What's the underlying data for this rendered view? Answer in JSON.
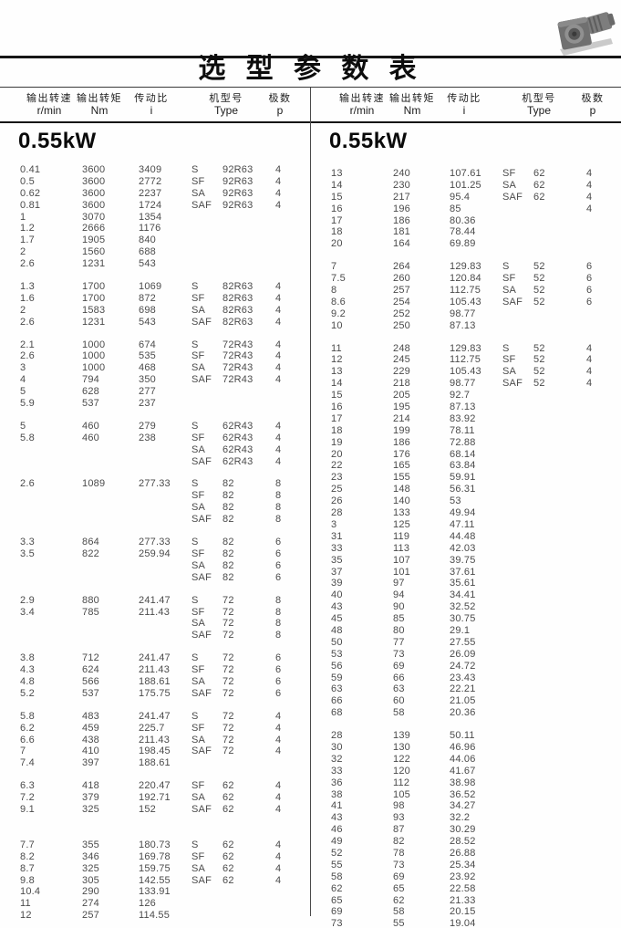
{
  "title": "选 型 参 数 表",
  "header_image": "worm-gearmotor-photo",
  "palette": {
    "ink": "#0d0d0d",
    "data_text": "#4b4b4b",
    "rule": "#161616"
  },
  "columns": [
    {
      "label": "输出转速",
      "unit": "r/min"
    },
    {
      "label": "输出转矩",
      "unit": "Nm"
    },
    {
      "label": "传动比",
      "unit": "i"
    },
    {
      "label": "机型号",
      "unit": "Type"
    },
    {
      "label": "极数",
      "unit": "p"
    }
  ],
  "left": {
    "section": "0.55kW",
    "groups": [
      {
        "rows": [
          [
            "0.41",
            "3600",
            "3409",
            "S",
            "92R63",
            "4"
          ],
          [
            "0.5",
            "3600",
            "2772",
            "SF",
            "92R63",
            "4"
          ],
          [
            "0.62",
            "3600",
            "2237",
            "SA",
            "92R63",
            "4"
          ],
          [
            "0.81",
            "3600",
            "1724",
            "SAF",
            "92R63",
            "4"
          ],
          [
            "1",
            "3070",
            "1354",
            "",
            "",
            ""
          ],
          [
            "1.2",
            "2666",
            "1176",
            "",
            "",
            ""
          ],
          [
            "1.7",
            "1905",
            "840",
            "",
            "",
            ""
          ],
          [
            "2",
            "1560",
            "688",
            "",
            "",
            ""
          ],
          [
            "2.6",
            "1231",
            "543",
            "",
            "",
            ""
          ]
        ]
      },
      {
        "rows": [
          [
            "1.3",
            "1700",
            "1069",
            "S",
            "82R63",
            "4"
          ],
          [
            "1.6",
            "1700",
            "872",
            "SF",
            "82R63",
            "4"
          ],
          [
            "2",
            "1583",
            "698",
            "SA",
            "82R63",
            "4"
          ],
          [
            "2.6",
            "1231",
            "543",
            "SAF",
            "82R63",
            "4"
          ]
        ]
      },
      {
        "rows": [
          [
            "2.1",
            "1000",
            "674",
            "S",
            "72R43",
            "4"
          ],
          [
            "2.6",
            "1000",
            "535",
            "SF",
            "72R43",
            "4"
          ],
          [
            "3",
            "1000",
            "468",
            "SA",
            "72R43",
            "4"
          ],
          [
            "4",
            "794",
            "350",
            "SAF",
            "72R43",
            "4"
          ],
          [
            "5",
            "628",
            "277",
            "",
            "",
            ""
          ],
          [
            "5.9",
            "537",
            "237",
            "",
            "",
            ""
          ]
        ]
      },
      {
        "rows": [
          [
            "5",
            "460",
            "279",
            "S",
            "62R43",
            "4"
          ],
          [
            "5.8",
            "460",
            "238",
            "SF",
            "62R43",
            "4"
          ],
          [
            "",
            "",
            "",
            "SA",
            "62R43",
            "4"
          ],
          [
            "",
            "",
            "",
            "SAF",
            "62R43",
            "4"
          ]
        ]
      },
      {
        "rows": [
          [
            "2.6",
            "1089",
            "277.33",
            "S",
            "82",
            "8"
          ],
          [
            "",
            "",
            "",
            "SF",
            "82",
            "8"
          ],
          [
            "",
            "",
            "",
            "SA",
            "82",
            "8"
          ],
          [
            "",
            "",
            "",
            "SAF",
            "82",
            "8"
          ]
        ]
      },
      {
        "rows": [
          [
            "3.3",
            "864",
            "277.33",
            "S",
            "82",
            "6"
          ],
          [
            "3.5",
            "822",
            "259.94",
            "SF",
            "82",
            "6"
          ],
          [
            "",
            "",
            "",
            "SA",
            "82",
            "6"
          ],
          [
            "",
            "",
            "",
            "SAF",
            "82",
            "6"
          ]
        ]
      },
      {
        "rows": [
          [
            "2.9",
            "880",
            "241.47",
            "S",
            "72",
            "8"
          ],
          [
            "3.4",
            "785",
            "211.43",
            "SF",
            "72",
            "8"
          ],
          [
            "",
            "",
            "",
            "SA",
            "72",
            "8"
          ],
          [
            "",
            "",
            "",
            "SAF",
            "72",
            "8"
          ]
        ]
      },
      {
        "rows": [
          [
            "3.8",
            "712",
            "241.47",
            "S",
            "72",
            "6"
          ],
          [
            "4.3",
            "624",
            "211.43",
            "SF",
            "72",
            "6"
          ],
          [
            "4.8",
            "566",
            "188.61",
            "SA",
            "72",
            "6"
          ],
          [
            "5.2",
            "537",
            "175.75",
            "SAF",
            "72",
            "6"
          ]
        ]
      },
      {
        "rows": [
          [
            "5.8",
            "483",
            "241.47",
            "S",
            "72",
            "4"
          ],
          [
            "6.2",
            "459",
            "225.7",
            "SF",
            "72",
            "4"
          ],
          [
            "6.6",
            "438",
            "211.43",
            "SA",
            "72",
            "4"
          ],
          [
            "7",
            "410",
            "198.45",
            "SAF",
            "72",
            "4"
          ],
          [
            "7.4",
            "397",
            "188.61",
            "",
            "",
            ""
          ]
        ]
      },
      {
        "rows": [
          [
            "6.3",
            "418",
            "220.47",
            "SF",
            "62",
            "4"
          ],
          [
            "7.2",
            "379",
            "192.71",
            "SA",
            "62",
            "4"
          ],
          [
            "9.1",
            "325",
            "152",
            "SAF",
            "62",
            "4"
          ]
        ]
      },
      {
        "rows": [
          [
            "7.7",
            "355",
            "180.73",
            "S",
            "62",
            "4"
          ],
          [
            "8.2",
            "346",
            "169.78",
            "SF",
            "62",
            "4"
          ],
          [
            "8.7",
            "325",
            "159.75",
            "SA",
            "62",
            "4"
          ],
          [
            "9.8",
            "305",
            "142.55",
            "SAF",
            "62",
            "4"
          ],
          [
            "10.4",
            "290",
            "133.91",
            "",
            "",
            ""
          ],
          [
            "11",
            "274",
            "126",
            "",
            "",
            ""
          ],
          [
            "12",
            "257",
            "114.55",
            "",
            "",
            ""
          ]
        ]
      }
    ]
  },
  "right": {
    "section": "0.55kW",
    "groups": [
      {
        "rows": [
          [
            "13",
            "240",
            "107.61",
            "SF",
            "62",
            "4"
          ],
          [
            "14",
            "230",
            "101.25",
            "SA",
            "62",
            "4"
          ],
          [
            "15",
            "217",
            "95.4",
            "SAF",
            "62",
            "4"
          ],
          [
            "16",
            "196",
            "85",
            "",
            "",
            "4"
          ],
          [
            "17",
            "186",
            "80.36",
            "",
            "",
            ""
          ],
          [
            "18",
            "181",
            "78.44",
            "",
            "",
            ""
          ],
          [
            "20",
            "164",
            "69.89",
            "",
            "",
            ""
          ]
        ]
      },
      {
        "rows": [
          [
            "7",
            "264",
            "129.83",
            "S",
            "52",
            "6"
          ],
          [
            "7.5",
            "260",
            "120.84",
            "SF",
            "52",
            "6"
          ],
          [
            "8",
            "257",
            "112.75",
            "SA",
            "52",
            "6"
          ],
          [
            "8.6",
            "254",
            "105.43",
            "SAF",
            "52",
            "6"
          ],
          [
            "9.2",
            "252",
            "98.77",
            "",
            "",
            ""
          ],
          [
            "10",
            "250",
            "87.13",
            "",
            "",
            ""
          ]
        ]
      },
      {
        "rows": [
          [
            "11",
            "248",
            "129.83",
            "S",
            "52",
            "4"
          ],
          [
            "12",
            "245",
            "112.75",
            "SF",
            "52",
            "4"
          ],
          [
            "13",
            "229",
            "105.43",
            "SA",
            "52",
            "4"
          ],
          [
            "14",
            "218",
            "98.77",
            "SAF",
            "52",
            "4"
          ],
          [
            "15",
            "205",
            "92.7",
            "",
            "",
            ""
          ],
          [
            "16",
            "195",
            "87.13",
            "",
            "",
            ""
          ],
          [
            "17",
            "214",
            "83.92",
            "",
            "",
            ""
          ],
          [
            "18",
            "199",
            "78.11",
            "",
            "",
            ""
          ],
          [
            "19",
            "186",
            "72.88",
            "",
            "",
            ""
          ],
          [
            "20",
            "176",
            "68.14",
            "",
            "",
            ""
          ],
          [
            "22",
            "165",
            "63.84",
            "",
            "",
            ""
          ],
          [
            "23",
            "155",
            "59.91",
            "",
            "",
            ""
          ],
          [
            "25",
            "148",
            "56.31",
            "",
            "",
            ""
          ],
          [
            "26",
            "140",
            "53",
            "",
            "",
            ""
          ],
          [
            "28",
            "133",
            "49.94",
            "",
            "",
            ""
          ],
          [
            "3",
            "125",
            "47.11",
            "",
            "",
            ""
          ],
          [
            "31",
            "119",
            "44.48",
            "",
            "",
            ""
          ],
          [
            "33",
            "113",
            "42.03",
            "",
            "",
            ""
          ],
          [
            "35",
            "107",
            "39.75",
            "",
            "",
            ""
          ],
          [
            "37",
            "101",
            "37.61",
            "",
            "",
            ""
          ],
          [
            "39",
            "97",
            "35.61",
            "",
            "",
            ""
          ],
          [
            "40",
            "94",
            "34.41",
            "",
            "",
            ""
          ],
          [
            "43",
            "90",
            "32.52",
            "",
            "",
            ""
          ],
          [
            "45",
            "85",
            "30.75",
            "",
            "",
            ""
          ],
          [
            "48",
            "80",
            "29.1",
            "",
            "",
            ""
          ],
          [
            "50",
            "77",
            "27.55",
            "",
            "",
            ""
          ],
          [
            "53",
            "73",
            "26.09",
            "",
            "",
            ""
          ],
          [
            "56",
            "69",
            "24.72",
            "",
            "",
            ""
          ],
          [
            "59",
            "66",
            "23.43",
            "",
            "",
            ""
          ],
          [
            "63",
            "63",
            "22.21",
            "",
            "",
            ""
          ],
          [
            "66",
            "60",
            "21.05",
            "",
            "",
            ""
          ],
          [
            "68",
            "58",
            "20.36",
            "",
            "",
            ""
          ]
        ]
      },
      {
        "rows": [
          [
            "28",
            "139",
            "50.11",
            "",
            "",
            ""
          ],
          [
            "30",
            "130",
            "46.96",
            "",
            "",
            ""
          ],
          [
            "32",
            "122",
            "44.06",
            "",
            "",
            ""
          ],
          [
            "33",
            "120",
            "41.67",
            "",
            "",
            ""
          ],
          [
            "36",
            "112",
            "38.98",
            "",
            "",
            ""
          ],
          [
            "38",
            "105",
            "36.52",
            "",
            "",
            ""
          ],
          [
            "41",
            "98",
            "34.27",
            "",
            "",
            ""
          ],
          [
            "43",
            "93",
            "32.2",
            "",
            "",
            ""
          ],
          [
            "46",
            "87",
            "30.29",
            "",
            "",
            ""
          ],
          [
            "49",
            "82",
            "28.52",
            "",
            "",
            ""
          ],
          [
            "52",
            "78",
            "26.88",
            "",
            "",
            ""
          ],
          [
            "55",
            "73",
            "25.34",
            "",
            "",
            ""
          ],
          [
            "58",
            "69",
            "23.92",
            "",
            "",
            ""
          ],
          [
            "62",
            "65",
            "22.58",
            "",
            "",
            ""
          ],
          [
            "65",
            "62",
            "21.33",
            "",
            "",
            ""
          ],
          [
            "69",
            "58",
            "20.15",
            "",
            "",
            ""
          ],
          [
            "73",
            "55",
            "19.04",
            "",
            "",
            ""
          ]
        ]
      }
    ]
  }
}
